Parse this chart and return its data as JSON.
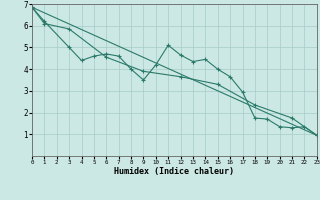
{
  "xlabel": "Humidex (Indice chaleur)",
  "background_color": "#cce8e4",
  "line_color": "#2a7a6a",
  "xlim": [
    0,
    23
  ],
  "ylim": [
    0,
    7
  ],
  "xticks": [
    0,
    1,
    2,
    3,
    4,
    5,
    6,
    7,
    8,
    9,
    10,
    11,
    12,
    13,
    14,
    15,
    16,
    17,
    18,
    19,
    20,
    21,
    22,
    23
  ],
  "yticks": [
    1,
    2,
    3,
    4,
    5,
    6,
    7
  ],
  "line1_x": [
    0,
    1,
    3,
    4,
    5,
    6,
    7,
    8,
    9,
    10,
    11,
    12,
    13,
    14,
    15,
    16,
    17,
    18,
    19,
    20,
    21,
    22,
    23
  ],
  "line1_y": [
    6.85,
    6.2,
    5.0,
    4.4,
    4.6,
    4.7,
    4.6,
    4.0,
    3.5,
    4.2,
    5.1,
    4.65,
    4.35,
    4.45,
    4.0,
    3.65,
    2.95,
    1.75,
    1.7,
    1.35,
    1.3,
    1.35,
    0.95
  ],
  "line2_x": [
    0,
    23
  ],
  "line2_y": [
    6.85,
    0.95
  ],
  "line3_x": [
    0,
    1,
    3,
    6,
    9,
    12,
    15,
    18,
    21,
    23
  ],
  "line3_y": [
    6.85,
    6.1,
    5.85,
    4.55,
    3.9,
    3.65,
    3.3,
    2.35,
    1.75,
    0.95
  ]
}
